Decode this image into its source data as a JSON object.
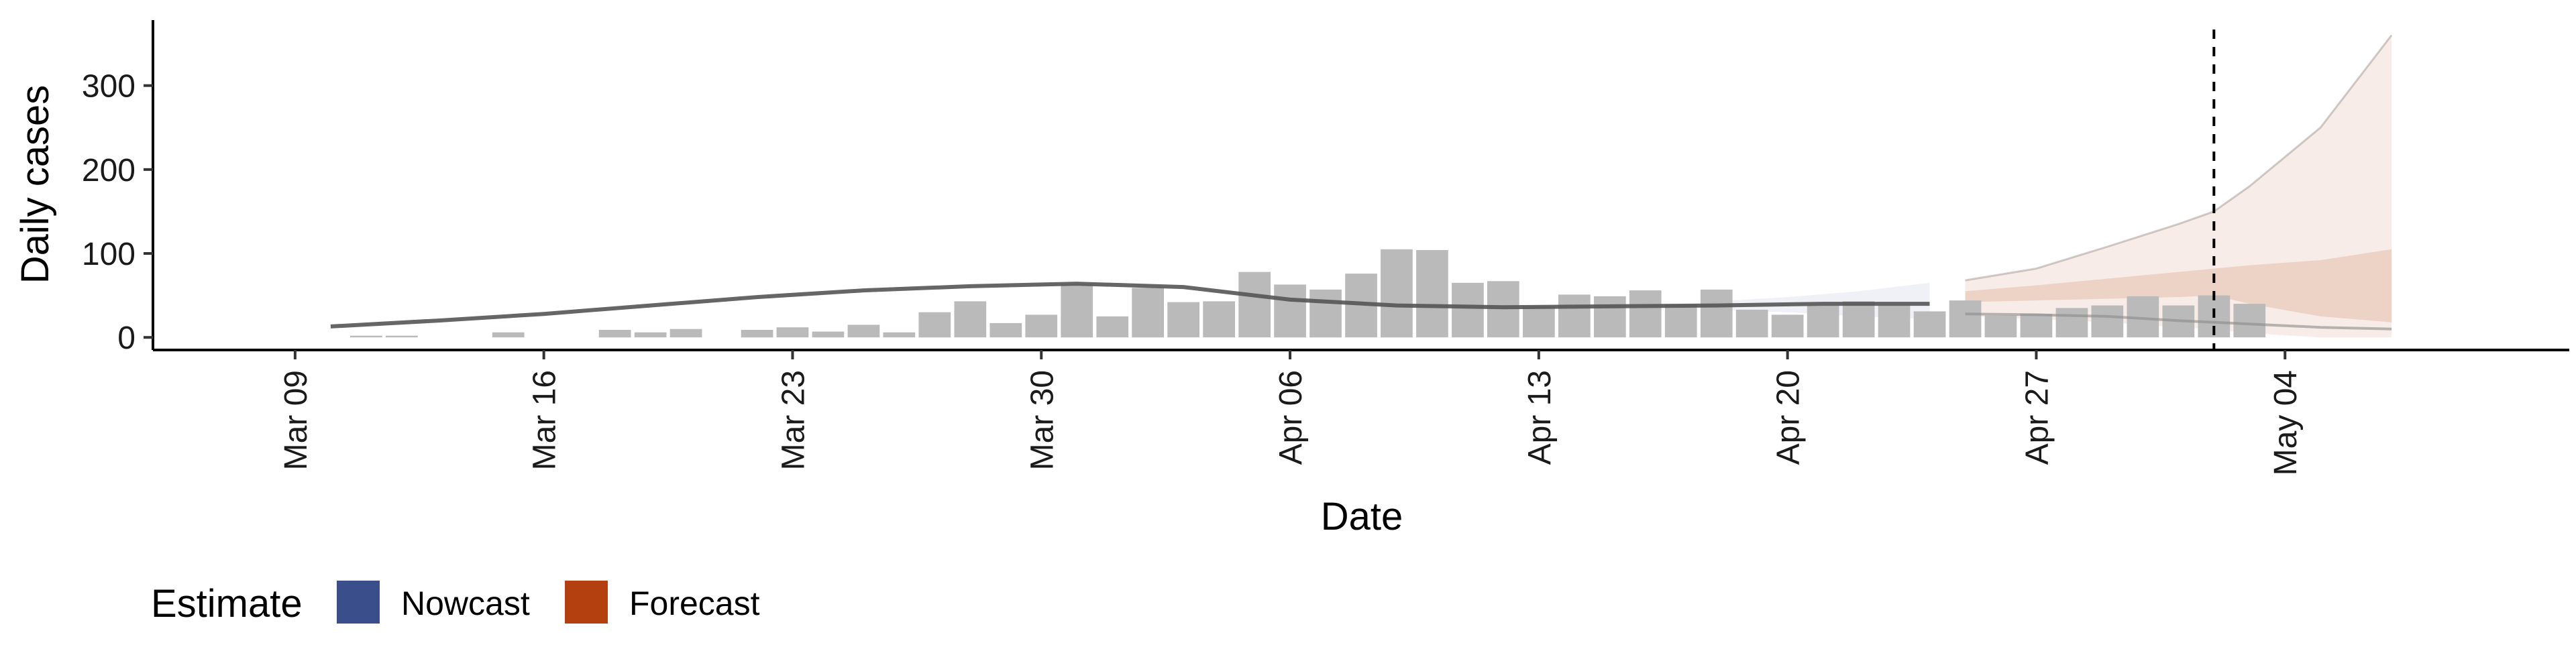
{
  "colors": {
    "bars": "#bababa",
    "nowcast": "#3a4e8c",
    "forecast": "#b5400f",
    "median_line": "#555555",
    "axis": "#000000"
  },
  "legend": {
    "title": "Estimate",
    "items": [
      {
        "label": "Nowcast",
        "color": "#3a4e8c"
      },
      {
        "label": "Forecast",
        "color": "#b5400f"
      }
    ]
  },
  "chart_data": {
    "type": "bar",
    "xlabel": "Date",
    "ylabel": "Daily cases",
    "xlim": [
      "2020-03-05",
      "2020-05-12"
    ],
    "ylim": [
      -15,
      378
    ],
    "x_ticks": [
      {
        "date": "2020-03-09",
        "label": "Mar 09"
      },
      {
        "date": "2020-03-16",
        "label": "Mar 16"
      },
      {
        "date": "2020-03-23",
        "label": "Mar 23"
      },
      {
        "date": "2020-03-30",
        "label": "Mar 30"
      },
      {
        "date": "2020-04-06",
        "label": "Apr 06"
      },
      {
        "date": "2020-04-13",
        "label": "Apr 13"
      },
      {
        "date": "2020-04-20",
        "label": "Apr 20"
      },
      {
        "date": "2020-04-27",
        "label": "Apr 27"
      },
      {
        "date": "2020-05-04",
        "label": "May 04"
      }
    ],
    "y_ticks": [
      0,
      100,
      200,
      300
    ],
    "reported_cases": {
      "dates": [
        "2020-03-11",
        "2020-03-12",
        "2020-03-15",
        "2020-03-18",
        "2020-03-19",
        "2020-03-20",
        "2020-03-22",
        "2020-03-23",
        "2020-03-24",
        "2020-03-25",
        "2020-03-26",
        "2020-03-27",
        "2020-03-28",
        "2020-03-29",
        "2020-03-30",
        "2020-03-31",
        "2020-04-01",
        "2020-04-02",
        "2020-04-03",
        "2020-04-04",
        "2020-04-05",
        "2020-04-06",
        "2020-04-07",
        "2020-04-08",
        "2020-04-09",
        "2020-04-10",
        "2020-04-11",
        "2020-04-12",
        "2020-04-13",
        "2020-04-14",
        "2020-04-15",
        "2020-04-16",
        "2020-04-17",
        "2020-04-18",
        "2020-04-19",
        "2020-04-20",
        "2020-04-21",
        "2020-04-22",
        "2020-04-23",
        "2020-04-24",
        "2020-04-25",
        "2020-04-26",
        "2020-04-27",
        "2020-04-28",
        "2020-04-29",
        "2020-04-30",
        "2020-05-01",
        "2020-05-02",
        "2020-05-03"
      ],
      "values": [
        2,
        2,
        6,
        9,
        6,
        10,
        9,
        12,
        7,
        15,
        6,
        30,
        43,
        17,
        27,
        63,
        25,
        59,
        42,
        43,
        78,
        63,
        57,
        76,
        105,
        104,
        65,
        67,
        37,
        51,
        49,
        56,
        39,
        57,
        33,
        27,
        38,
        43,
        38,
        31,
        44,
        26,
        28,
        35,
        38,
        49,
        38,
        50,
        40
      ]
    },
    "median_line": {
      "dates": [
        "2020-03-10",
        "2020-03-13",
        "2020-03-16",
        "2020-03-19",
        "2020-03-22",
        "2020-03-25",
        "2020-03-28",
        "2020-03-31",
        "2020-04-03",
        "2020-04-06",
        "2020-04-09",
        "2020-04-12",
        "2020-04-15",
        "2020-04-18",
        "2020-04-21",
        "2020-04-24"
      ],
      "values": [
        13,
        20,
        28,
        38,
        48,
        56,
        61,
        64,
        60,
        45,
        38,
        36,
        37,
        38,
        40,
        40
      ]
    },
    "nowcast": {
      "dates": [
        "2020-04-18",
        "2020-04-20",
        "2020-04-22",
        "2020-04-24"
      ],
      "lower": [
        33,
        30,
        25,
        22
      ],
      "upper": [
        43,
        48,
        55,
        65
      ]
    },
    "forecast": {
      "dates": [
        "2020-04-25",
        "2020-04-27",
        "2020-04-29",
        "2020-05-01",
        "2020-05-02",
        "2020-05-03",
        "2020-05-05",
        "2020-05-07"
      ],
      "outer_lower": [
        25,
        22,
        18,
        12,
        10,
        5,
        0,
        0
      ],
      "outer_upper": [
        68,
        82,
        108,
        135,
        150,
        180,
        250,
        360
      ],
      "inner_lower": [
        42,
        44,
        46,
        48,
        50,
        40,
        25,
        18
      ],
      "inner_upper": [
        55,
        62,
        70,
        78,
        82,
        86,
        92,
        105
      ],
      "median": [
        28,
        27,
        25,
        20,
        18,
        16,
        12,
        10
      ]
    },
    "reference_line_date": "2020-05-02",
    "grid": false,
    "legend_position": "bottom-left"
  }
}
